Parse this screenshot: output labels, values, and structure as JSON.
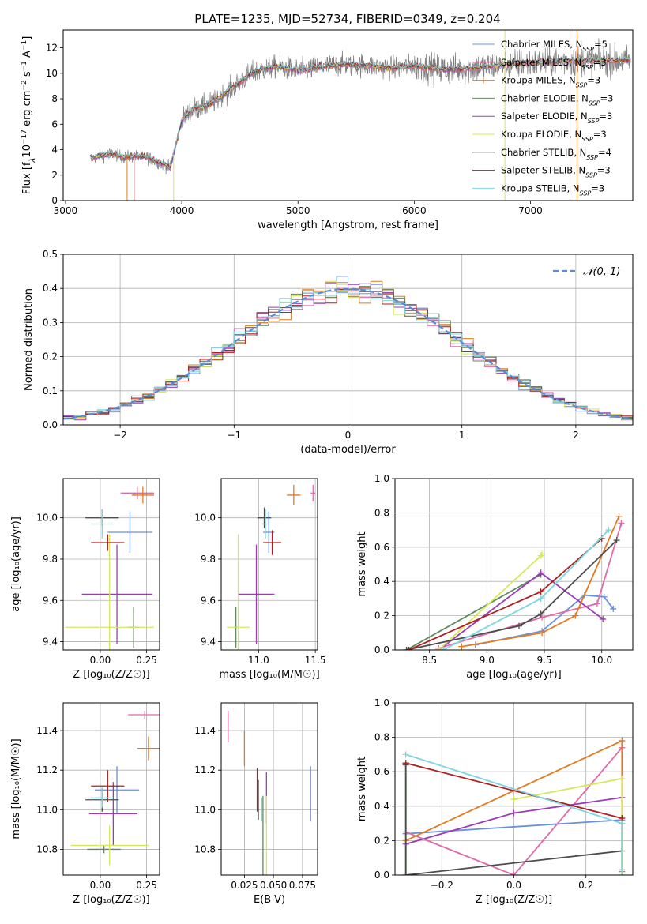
{
  "figure": {
    "title": "PLATE=1235, MJD=52734, FIBERID=0349, z=0.204"
  },
  "colors": {
    "Chabrier MILES": "#6a8fdc",
    "Salpeter MILES": "#e06aa8",
    "Kroupa MILES": "#e07b22",
    "Chabrier ELODIE": "#5e8a5e",
    "Salpeter ELODIE": "#9c3bb5",
    "Kroupa ELODIE": "#d6e85a",
    "Chabrier STELIB": "#4d4d4d",
    "Salpeter STELIB": "#b01e1e",
    "Kroupa STELIB": "#7fd6e0",
    "data": "#7f7f7f",
    "normal": "#5b8bd8"
  },
  "chart_data": [
    {
      "id": "spectrum",
      "type": "line",
      "xlabel": "wavelength [Angstrom, rest frame]",
      "ylabel_parts": [
        "Flux [f",
        "λ",
        "10",
        "−17",
        " erg cm",
        "−2",
        " s",
        "−1",
        " A",
        "−1",
        "]"
      ],
      "xlim": [
        2980,
        7880
      ],
      "ylim": [
        0,
        13.4
      ],
      "xticks": [
        3000,
        4000,
        5000,
        6000,
        7000
      ],
      "yticks": [
        0,
        2,
        4,
        6,
        8,
        10,
        12
      ],
      "continuum": {
        "x": [
          3200,
          3300,
          3400,
          3500,
          3600,
          3700,
          3800,
          3900,
          4000,
          4100,
          4200,
          4300,
          4400,
          4500,
          4600,
          4700,
          4800,
          4900,
          5000,
          5200,
          5400,
          5600,
          5800,
          6000,
          6200,
          6400,
          6600,
          6800,
          7000,
          7200,
          7400,
          7600,
          7800
        ],
        "y": [
          3.3,
          3.5,
          3.7,
          3.4,
          3.5,
          3.4,
          3.0,
          2.6,
          6.3,
          7.2,
          7.4,
          7.9,
          8.6,
          9.3,
          10.0,
          10.3,
          10.5,
          10.4,
          10.2,
          10.5,
          10.7,
          10.6,
          10.4,
          10.6,
          10.3,
          10.3,
          10.5,
          10.7,
          10.8,
          10.9,
          11.0,
          11.0,
          11.0
        ]
      },
      "series": [
        {
          "name": "Chabrier MILES",
          "legend_parts": [
            "Chabrier MILES, N",
            "SSP",
            "=5"
          ],
          "color": "#6a8fdc"
        },
        {
          "name": "Salpeter MILES",
          "legend_parts": [
            "Salpeter MILES, N",
            "SSP",
            "=3"
          ],
          "color": "#e06aa8"
        },
        {
          "name": "Kroupa MILES",
          "legend_parts": [
            "Kroupa MILES, N",
            "SSP",
            "=3"
          ],
          "color": "#e07b22"
        },
        {
          "name": "Chabrier ELODIE",
          "legend_parts": [
            "Chabrier ELODIE, N",
            "SSP",
            "=3"
          ],
          "color": "#5e8a5e"
        },
        {
          "name": "Salpeter ELODIE",
          "legend_parts": [
            "Salpeter ELODIE, N",
            "SSP",
            "=3"
          ],
          "color": "#9c3bb5"
        },
        {
          "name": "Kroupa ELODIE",
          "legend_parts": [
            "Kroupa ELODIE, N",
            "SSP",
            "=3"
          ],
          "color": "#d6e85a"
        },
        {
          "name": "Chabrier STELIB",
          "legend_parts": [
            "Chabrier STELIB, N",
            "SSP",
            "=4"
          ],
          "color": "#4d4d4d"
        },
        {
          "name": "Salpeter STELIB",
          "legend_parts": [
            "Salpeter STELIB, N",
            "SSP",
            "=3"
          ],
          "color": "#b01e1e"
        },
        {
          "name": "Kroupa STELIB",
          "legend_parts": [
            "Kroupa STELIB, N",
            "SSP",
            "=3"
          ],
          "color": "#7fd6e0"
        }
      ],
      "legend": "top-right",
      "grid": false
    },
    {
      "id": "residuals",
      "type": "line",
      "xlabel": "(data-model)/error",
      "ylabel": "Normed distribution",
      "xlim": [
        -2.5,
        2.5
      ],
      "ylim": [
        0,
        0.5
      ],
      "xticks": [
        -2,
        -1,
        0,
        1,
        2
      ],
      "yticks": [
        0.0,
        0.1,
        0.2,
        0.3,
        0.4,
        0.5
      ],
      "bin_width": 0.1,
      "legend_label": "𝒩(0, 1)",
      "legend": "top-right",
      "grid": true
    },
    {
      "id": "z-age",
      "type": "scatter",
      "xlabel": "Z [log₁₀(Z/Z☉)]",
      "ylabel": "age  [log₁₀(age/yr)]",
      "xlim": [
        -0.2,
        0.32
      ],
      "ylim": [
        9.36,
        10.19
      ],
      "xticks": [
        0.0,
        0.25
      ],
      "yticks": [
        9.4,
        9.6,
        9.8,
        10.0
      ],
      "grid": true,
      "points": [
        {
          "series": "Chabrier MILES",
          "x": 0.16,
          "xerr": 0.12,
          "y": 9.93,
          "yerr": 0.1
        },
        {
          "series": "Salpeter MILES",
          "x": 0.2,
          "xerr": 0.09,
          "y": 10.12,
          "yerr": 0.03
        },
        {
          "series": "Kroupa MILES",
          "x": 0.23,
          "xerr": 0.06,
          "y": 10.11,
          "yerr": 0.04
        },
        {
          "series": "Chabrier ELODIE",
          "x": 0.18,
          "xerr": 0.03,
          "y": 9.47,
          "yerr": 0.1
        },
        {
          "series": "Salpeter ELODIE",
          "x": 0.09,
          "xerr": 0.19,
          "y": 9.63,
          "yerr": 0.24
        },
        {
          "series": "Kroupa ELODIE",
          "x": 0.05,
          "xerr": 0.24,
          "y": 9.47,
          "yerr": 0.45
        },
        {
          "series": "Chabrier STELIB",
          "x": 0.01,
          "xerr": 0.09,
          "y": 10.0,
          "yerr": 0.04
        },
        {
          "series": "Salpeter STELIB",
          "x": 0.04,
          "xerr": 0.09,
          "y": 9.88,
          "yerr": 0.04
        },
        {
          "series": "Kroupa STELIB",
          "x": 0.01,
          "xerr": 0.06,
          "y": 9.97,
          "yerr": 0.07
        }
      ]
    },
    {
      "id": "mass-age",
      "type": "scatter",
      "xlabel": "mass [log₁₀(M/M☉)]",
      "ylabel": "",
      "xlim": [
        10.67,
        11.52
      ],
      "ylim": [
        9.36,
        10.19
      ],
      "xticks": [
        11.0,
        11.5
      ],
      "yticks": [
        9.4,
        9.6,
        9.8,
        10.0
      ],
      "grid": true,
      "points": [
        {
          "series": "Chabrier MILES",
          "x": 11.09,
          "xerr": 0.05,
          "y": 9.93,
          "yerr": 0.1
        },
        {
          "series": "Salpeter MILES",
          "x": 11.48,
          "xerr": 0.02,
          "y": 10.12,
          "yerr": 0.04
        },
        {
          "series": "Kroupa MILES",
          "x": 11.31,
          "xerr": 0.06,
          "y": 10.11,
          "yerr": 0.05
        },
        {
          "series": "Chabrier ELODIE",
          "x": 10.8,
          "xerr": 0.01,
          "y": 9.47,
          "yerr": 0.1
        },
        {
          "series": "Salpeter ELODIE",
          "x": 10.98,
          "xerr": 0.16,
          "y": 9.63,
          "yerr": 0.24
        },
        {
          "series": "Kroupa ELODIE",
          "x": 10.82,
          "xerr": 0.1,
          "y": 9.47,
          "yerr": 0.45
        },
        {
          "series": "Chabrier STELIB",
          "x": 11.05,
          "xerr": 0.06,
          "y": 10.0,
          "yerr": 0.05
        },
        {
          "series": "Salpeter STELIB",
          "x": 11.12,
          "xerr": 0.08,
          "y": 9.88,
          "yerr": 0.06
        },
        {
          "series": "Kroupa STELIB",
          "x": 11.06,
          "xerr": 0.03,
          "y": 9.97,
          "yerr": 0.07
        }
      ]
    },
    {
      "id": "age-weight",
      "type": "line",
      "xlabel": "age  [log₁₀(age/yr)]",
      "ylabel": "mass weight",
      "xlim": [
        8.2,
        10.27
      ],
      "ylim": [
        0,
        1.0
      ],
      "xticks": [
        8.5,
        9.0,
        9.5,
        10.0
      ],
      "yticks": [
        0.0,
        0.2,
        0.4,
        0.6,
        0.8,
        1.0
      ],
      "grid": true,
      "series": [
        {
          "name": "Chabrier MILES",
          "x": [
            8.9,
            9.48,
            9.85,
            10.02,
            10.1
          ],
          "y": [
            0.03,
            0.11,
            0.32,
            0.31,
            0.24
          ]
        },
        {
          "name": "Salpeter MILES",
          "x": [
            8.58,
            9.48,
            9.96,
            10.17
          ],
          "y": [
            0.01,
            0.19,
            0.27,
            0.74
          ]
        },
        {
          "name": "Kroupa MILES",
          "x": [
            8.78,
            9.48,
            9.77,
            10.15
          ],
          "y": [
            0.02,
            0.1,
            0.2,
            0.78
          ]
        },
        {
          "name": "Chabrier ELODIE",
          "x": [
            8.3,
            9.47
          ],
          "y": [
            0.0,
            0.44
          ]
        },
        {
          "name": "Salpeter ELODIE",
          "x": [
            8.58,
            9.47,
            10.01
          ],
          "y": [
            0.0,
            0.45,
            0.18
          ]
        },
        {
          "name": "Kroupa ELODIE",
          "x": [
            8.58,
            9.47,
            9.48
          ],
          "y": [
            0.0,
            0.55,
            0.56
          ]
        },
        {
          "name": "Chabrier STELIB",
          "x": [
            8.3,
            9.28,
            9.47,
            10.13
          ],
          "y": [
            0.0,
            0.14,
            0.21,
            0.64
          ]
        },
        {
          "name": "Salpeter STELIB",
          "x": [
            8.32,
            9.47,
            10.0
          ],
          "y": [
            0.0,
            0.34,
            0.65
          ]
        },
        {
          "name": "Kroupa STELIB",
          "x": [
            8.62,
            9.47,
            10.06
          ],
          "y": [
            0.0,
            0.3,
            0.7
          ]
        }
      ]
    },
    {
      "id": "z-mass",
      "type": "scatter",
      "xlabel": "Z [log₁₀(Z/Z☉)]",
      "ylabel": "mass [log₁₀(M/M☉)]",
      "xlim": [
        -0.2,
        0.32
      ],
      "ylim": [
        10.67,
        11.54
      ],
      "xticks": [
        0.0,
        0.25
      ],
      "yticks": [
        10.8,
        11.0,
        11.2,
        11.4
      ],
      "grid": true,
      "points": [
        {
          "series": "Chabrier MILES",
          "x": 0.09,
          "xerr": 0.12,
          "y": 11.1,
          "yerr": 0.12
        },
        {
          "series": "Salpeter MILES",
          "x": 0.24,
          "xerr": 0.09,
          "y": 11.48,
          "yerr": 0.02
        },
        {
          "series": "Kroupa MILES",
          "x": 0.26,
          "xerr": 0.06,
          "y": 11.31,
          "yerr": 0.06
        },
        {
          "series": "Chabrier ELODIE",
          "x": 0.02,
          "xerr": 0.09,
          "y": 10.8,
          "yerr": 0.02
        },
        {
          "series": "Salpeter ELODIE",
          "x": 0.07,
          "xerr": 0.13,
          "y": 10.98,
          "yerr": 0.16
        },
        {
          "series": "Kroupa ELODIE",
          "x": 0.05,
          "xerr": 0.21,
          "y": 10.82,
          "yerr": 0.1
        },
        {
          "series": "Chabrier STELIB",
          "x": 0.01,
          "xerr": 0.09,
          "y": 11.05,
          "yerr": 0.06
        },
        {
          "series": "Salpeter STELIB",
          "x": 0.04,
          "xerr": 0.09,
          "y": 11.12,
          "yerr": 0.08
        },
        {
          "series": "Kroupa STELIB",
          "x": 0.01,
          "xerr": 0.06,
          "y": 11.06,
          "yerr": 0.05
        }
      ]
    },
    {
      "id": "ebv-mass",
      "type": "scatter",
      "xlabel": "E(B-V)",
      "ylabel": "",
      "xlim": [
        0.005,
        0.088
      ],
      "ylim": [
        10.67,
        11.54
      ],
      "xticks": [
        0.025,
        0.05,
        0.075
      ],
      "yticks": [
        10.8,
        11.0,
        11.2,
        11.4
      ],
      "grid": true,
      "points": [
        {
          "series": "Chabrier MILES",
          "x": 0.082,
          "xerr": 0.0,
          "y": 11.08,
          "yerr": 0.14
        },
        {
          "series": "Salpeter MILES",
          "x": 0.011,
          "xerr": 0.0,
          "y": 11.42,
          "yerr": 0.08
        },
        {
          "series": "Kroupa MILES",
          "x": 0.025,
          "xerr": 0.0,
          "y": 11.31,
          "yerr": 0.09
        },
        {
          "series": "Chabrier ELODIE",
          "x": 0.041,
          "xerr": 0.0,
          "y": 10.87,
          "yerr": 0.2
        },
        {
          "series": "Salpeter ELODIE",
          "x": 0.044,
          "xerr": 0.0,
          "y": 11.06,
          "yerr": 0.13
        },
        {
          "series": "Kroupa ELODIE",
          "x": 0.044,
          "xerr": 0.0,
          "y": 10.83,
          "yerr": 0.24
        },
        {
          "series": "Chabrier STELIB",
          "x": 0.037,
          "xerr": 0.0,
          "y": 11.05,
          "yerr": 0.1
        },
        {
          "series": "Salpeter STELIB",
          "x": 0.036,
          "xerr": 0.0,
          "y": 11.1,
          "yerr": 0.11
        },
        {
          "series": "Kroupa STELIB",
          "x": 0.04,
          "xerr": 0.0,
          "y": 11.0,
          "yerr": 0.06
        }
      ]
    },
    {
      "id": "z-weight",
      "type": "line",
      "xlabel": "Z [log₁₀(Z/Z☉)]",
      "ylabel": "mass weight",
      "xlim": [
        -0.33,
        0.33
      ],
      "ylim": [
        0,
        1.0
      ],
      "xticks": [
        -0.2,
        0.0,
        0.2
      ],
      "yticks": [
        0.0,
        0.2,
        0.4,
        0.6,
        0.8,
        1.0
      ],
      "grid": true,
      "series": [
        {
          "name": "Chabrier MILES",
          "x": [
            -0.3,
            0.3,
            0.3
          ],
          "y": [
            0.24,
            0.32,
            0.03
          ]
        },
        {
          "name": "Salpeter MILES",
          "x": [
            -0.3,
            0.0,
            0.3
          ],
          "y": [
            0.25,
            0.0,
            0.74
          ]
        },
        {
          "name": "Kroupa MILES",
          "x": [
            -0.3,
            0.3,
            0.3
          ],
          "y": [
            0.2,
            0.78,
            0.02
          ]
        },
        {
          "name": "Chabrier ELODIE",
          "x": [
            -0.3,
            -0.3
          ],
          "y": [
            0.0,
            0.65
          ]
        },
        {
          "name": "Salpeter ELODIE",
          "x": [
            -0.3,
            0.0,
            0.3
          ],
          "y": [
            0.18,
            0.36,
            0.45
          ]
        },
        {
          "name": "Kroupa ELODIE",
          "x": [
            0.0,
            0.3,
            0.3
          ],
          "y": [
            0.44,
            0.56,
            0.0
          ]
        },
        {
          "name": "Chabrier STELIB",
          "x": [
            -0.3,
            -0.3,
            0.3
          ],
          "y": [
            0.64,
            0.0,
            0.14
          ]
        },
        {
          "name": "Salpeter STELIB",
          "x": [
            -0.3,
            0.3
          ],
          "y": [
            0.65,
            0.33
          ]
        },
        {
          "name": "Kroupa STELIB",
          "x": [
            -0.3,
            0.3,
            0.3
          ],
          "y": [
            0.7,
            0.3,
            0.0
          ]
        }
      ]
    }
  ]
}
